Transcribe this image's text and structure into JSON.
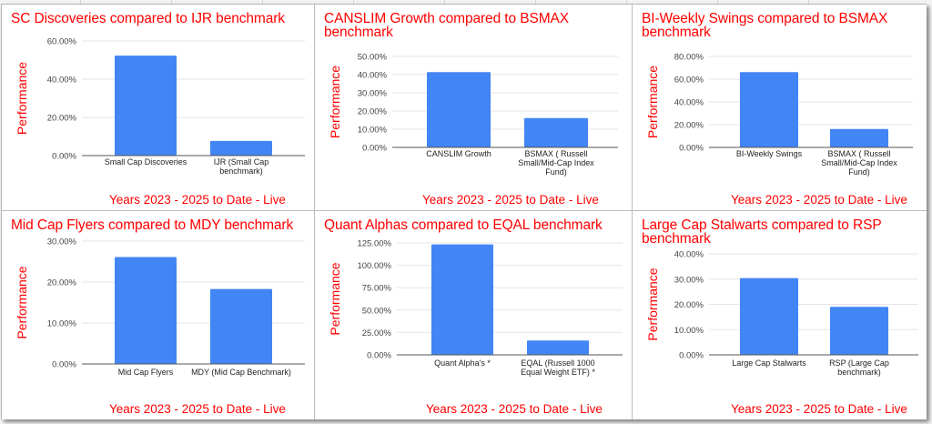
{
  "chart_data": [
    {
      "type": "bar",
      "title": "SC Discoveries compared to IJR benchmark",
      "xlabel": "Years 2023 - 2025 to Date - Live",
      "ylabel": "Performance",
      "categories": [
        "Small Cap Discoveries",
        "IJR (Small Cap benchmark)"
      ],
      "category_lines": [
        [
          "Small Cap Discoveries"
        ],
        [
          "IJR (Small Cap",
          "benchmark)"
        ]
      ],
      "values": [
        52.3,
        7.7
      ],
      "unit": "%",
      "ylim": [
        0,
        60
      ],
      "yticks": [
        "0.00%",
        "20.00%",
        "40.00%",
        "60.00%"
      ],
      "ytick_values": [
        0,
        20,
        40,
        60
      ],
      "grid": true,
      "legend": "none",
      "bar_color": "#4285f4"
    },
    {
      "type": "bar",
      "title": "CANSLIM Growth compared to BSMAX benchmark",
      "xlabel": "Years 2023 - 2025 to Date - Live",
      "ylabel": "Performance",
      "categories": [
        "CANSLIM Growth",
        "BSMAX ( Russell Small/Mid-Cap Index Fund)"
      ],
      "category_lines": [
        [
          "CANSLIM Growth"
        ],
        [
          "BSMAX ( Russell",
          "Small/Mid-Cap Index",
          "Fund)"
        ]
      ],
      "values": [
        41.4,
        16.1
      ],
      "unit": "%",
      "ylim": [
        0,
        50
      ],
      "yticks": [
        "0.00%",
        "10.00%",
        "20.00%",
        "30.00%",
        "40.00%",
        "50.00%"
      ],
      "ytick_values": [
        0,
        10,
        20,
        30,
        40,
        50
      ],
      "grid": true,
      "legend": "none",
      "bar_color": "#4285f4"
    },
    {
      "type": "bar",
      "title": "BI-Weekly Swings compared to BSMAX benchmark",
      "xlabel": "Years 2023 - 2025 to Date - Live",
      "ylabel": "Performance",
      "categories": [
        "BI-Weekly Swings",
        "BSMAX ( Russell Small/Mid-Cap Index Fund)"
      ],
      "category_lines": [
        [
          "BI-Weekly Swings"
        ],
        [
          "BSMAX ( Russell",
          "Small/Mid-Cap Index",
          "Fund)"
        ]
      ],
      "values": [
        66.2,
        16.2
      ],
      "unit": "%",
      "ylim": [
        0,
        80
      ],
      "yticks": [
        "0.00%",
        "20.00%",
        "40.00%",
        "60.00%",
        "80.00%"
      ],
      "ytick_values": [
        0,
        20,
        40,
        60,
        80
      ],
      "grid": true,
      "legend": "none",
      "bar_color": "#4285f4"
    },
    {
      "type": "bar",
      "title": "Mid Cap Flyers compared to MDY benchmark",
      "xlabel": "Years 2023 - 2025 to Date - Live",
      "ylabel": "Performance",
      "categories": [
        "Mid Cap Flyers",
        "MDY (Mid Cap Benchmark)"
      ],
      "category_lines": [
        [
          "Mid Cap Flyers"
        ],
        [
          "MDY (Mid Cap Benchmark)"
        ]
      ],
      "values": [
        26.1,
        18.3
      ],
      "unit": "%",
      "ylim": [
        0,
        30
      ],
      "yticks": [
        "0.00%",
        "10.00%",
        "20.00%",
        "30.00%"
      ],
      "ytick_values": [
        0,
        10,
        20,
        30
      ],
      "grid": true,
      "legend": "none",
      "bar_color": "#4285f4"
    },
    {
      "type": "bar",
      "title": "Quant Alphas compared to EQAL benchmark",
      "xlabel": "Years 2023 - 2025 to Date - Live",
      "ylabel": "Performance",
      "categories": [
        "Quant Alpha's   *",
        "EQAL (Russell 1000 Equal Weight ETF)  *"
      ],
      "category_lines": [
        [
          "Quant Alpha's   *"
        ],
        [
          "EQAL (Russell 1000",
          "Equal Weight ETF)  *"
        ]
      ],
      "values": [
        123.3,
        16.0
      ],
      "unit": "%",
      "ylim": [
        0,
        125
      ],
      "yticks": [
        "0.00%",
        "25.00%",
        "50.00%",
        "75.00%",
        "100.00%",
        "125.00%"
      ],
      "ytick_values": [
        0,
        25,
        50,
        75,
        100,
        125
      ],
      "grid": true,
      "legend": "none",
      "bar_color": "#4285f4"
    },
    {
      "type": "bar",
      "title": "Large Cap Stalwarts compared to RSP benchmark",
      "xlabel": "Years 2023 - 2025 to Date - Live",
      "ylabel": "Performance",
      "categories": [
        "Large Cap Stalwarts",
        "RSP (Large Cap benchmark)"
      ],
      "category_lines": [
        [
          "Large Cap Stalwarts"
        ],
        [
          "RSP (Large Cap",
          "benchmark)"
        ]
      ],
      "values": [
        30.4,
        19.0
      ],
      "unit": "%",
      "ylim": [
        0,
        40
      ],
      "yticks": [
        "0.00%",
        "10.00%",
        "20.00%",
        "30.00%",
        "40.00%"
      ],
      "ytick_values": [
        0,
        10,
        20,
        30,
        40
      ],
      "grid": true,
      "legend": "none",
      "bar_color": "#4285f4"
    }
  ],
  "titles": {
    "c0": [
      "SC Discoveries compared to IJR benchmark"
    ],
    "c1": [
      "CANSLIM Growth compared to BSMAX",
      "benchmark"
    ],
    "c2": [
      "BI-Weekly Swings compared to BSMAX",
      "benchmark"
    ],
    "c3": [
      "Mid Cap Flyers compared to MDY benchmark"
    ],
    "c4": [
      "Quant Alphas compared to EQAL benchmark"
    ],
    "c5": [
      "Large Cap Stalwarts compared to RSP",
      "benchmark"
    ]
  }
}
